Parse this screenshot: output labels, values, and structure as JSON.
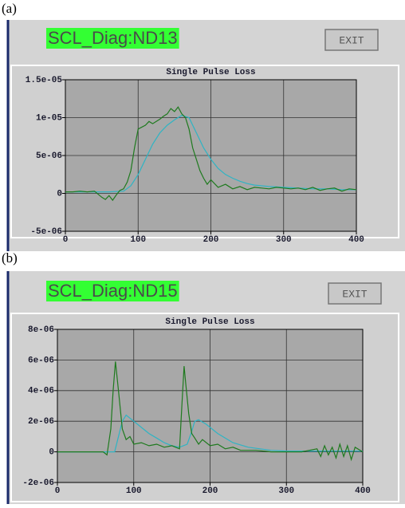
{
  "chart_data": [
    {
      "type": "line",
      "panel_label": "(a)",
      "header": "SCL_Diag:ND13",
      "button": "EXIT",
      "title": "Single Pulse Loss",
      "xlim": [
        0,
        400
      ],
      "xticks": [
        0,
        100,
        200,
        300,
        400
      ],
      "ylim": [
        -5e-06,
        1.5e-05
      ],
      "yticks": [
        {
          "value": -5e-06,
          "label": "-5e-06"
        },
        0,
        {
          "value": 5e-06,
          "label": "5e-06"
        },
        {
          "value": 1e-05,
          "label": "1e-05"
        },
        {
          "value": 1.5e-05,
          "label": "1.5e-05"
        }
      ],
      "grid": true,
      "series": [
        {
          "color": "#1e7a1e",
          "x": [
            0,
            10,
            20,
            30,
            40,
            50,
            55,
            60,
            65,
            70,
            75,
            80,
            85,
            90,
            95,
            100,
            110,
            115,
            120,
            130,
            135,
            140,
            145,
            150,
            155,
            160,
            165,
            170,
            175,
            180,
            185,
            190,
            195,
            200,
            210,
            220,
            230,
            240,
            250,
            260,
            270,
            280,
            290,
            300,
            310,
            320,
            330,
            340,
            350,
            360,
            370,
            380,
            390,
            400
          ],
          "values": [
            2e-07,
            2e-07,
            3e-07,
            2e-07,
            3e-07,
            -5e-07,
            -8e-07,
            -3e-07,
            -9e-07,
            -2e-07,
            4e-07,
            6e-07,
            1.5e-06,
            3e-06,
            6e-06,
            8.5e-06,
            9e-06,
            9.5e-06,
            9.2e-06,
            9.8e-06,
            1.02e-05,
            1.05e-05,
            1.12e-05,
            1.08e-05,
            1.14e-05,
            1.05e-05,
            1e-05,
            8.5e-06,
            6e-06,
            4.5e-06,
            3e-06,
            2e-06,
            1.2e-06,
            1.8e-06,
            8e-07,
            1.2e-06,
            6e-07,
            9e-07,
            5e-07,
            8e-07,
            7e-07,
            6e-07,
            8e-07,
            7e-07,
            6e-07,
            7e-07,
            5e-07,
            8e-07,
            4e-07,
            6e-07,
            7e-07,
            3e-07,
            6e-07,
            5e-07
          ]
        },
        {
          "color": "#2eb4c4",
          "x": [
            0,
            20,
            40,
            60,
            80,
            90,
            100,
            110,
            120,
            130,
            140,
            150,
            160,
            170,
            180,
            190,
            200,
            210,
            220,
            230,
            240,
            250,
            260,
            270,
            280,
            300,
            320,
            340,
            360,
            380,
            400
          ],
          "values": [
            2e-07,
            2e-07,
            2e-07,
            2e-07,
            3e-07,
            1e-06,
            2.5e-06,
            4.5e-06,
            6.5e-06,
            8e-06,
            9e-06,
            9.7e-06,
            1.03e-05,
            1e-05,
            8e-06,
            6e-06,
            4.5e-06,
            3.3e-06,
            2.5e-06,
            2e-06,
            1.6e-06,
            1.3e-06,
            1.1e-06,
            1e-06,
            9e-07,
            8e-07,
            7e-07,
            6e-07,
            6e-07,
            5e-07,
            5e-07
          ]
        }
      ]
    },
    {
      "type": "line",
      "panel_label": "(b)",
      "header": "SCL_Diag:ND15",
      "button": "EXIT",
      "title": "Single Pulse Loss",
      "xlim": [
        0,
        400
      ],
      "xticks": [
        0,
        100,
        200,
        300,
        400
      ],
      "ylim": [
        -2e-06,
        8e-06
      ],
      "yticks": [
        {
          "value": -2e-06,
          "label": "-2e-06"
        },
        0,
        {
          "value": 2e-06,
          "label": "2e-06"
        },
        {
          "value": 4e-06,
          "label": "4e-06"
        },
        {
          "value": 6e-06,
          "label": "6e-06"
        },
        {
          "value": 8e-06,
          "label": "8e-06"
        }
      ],
      "grid": true,
      "series": [
        {
          "color": "#1e7a1e",
          "x": [
            0,
            20,
            40,
            60,
            65,
            70,
            73,
            76,
            80,
            85,
            90,
            95,
            100,
            110,
            120,
            130,
            140,
            150,
            160,
            163,
            166,
            168,
            172,
            176,
            180,
            185,
            190,
            200,
            210,
            220,
            230,
            240,
            260,
            280,
            300,
            320,
            340,
            345,
            350,
            355,
            360,
            365,
            370,
            375,
            380,
            385,
            390,
            400
          ],
          "values": [
            0,
            0,
            0,
            0,
            -2e-07,
            1.5e-06,
            4e-06,
            5.9e-06,
            4e-06,
            1.5e-06,
            8e-07,
            1e-06,
            5e-07,
            6e-07,
            4e-07,
            5e-07,
            3e-07,
            4e-07,
            2e-07,
            3e-06,
            5.6e-06,
            4.5e-06,
            2.5e-06,
            1.2e-06,
            9e-07,
            5e-07,
            8e-07,
            4e-07,
            5e-07,
            2e-07,
            3e-07,
            1e-07,
            1e-07,
            0,
            0,
            0,
            2e-07,
            -3e-07,
            4e-07,
            -2e-07,
            3e-07,
            -4e-07,
            5e-07,
            -3e-07,
            4e-07,
            -5e-07,
            3e-07,
            0
          ]
        },
        {
          "color": "#2eb4c4",
          "x": [
            0,
            40,
            75,
            80,
            85,
            90,
            100,
            110,
            120,
            130,
            140,
            150,
            160,
            170,
            175,
            180,
            185,
            195,
            210,
            230,
            250,
            280,
            300,
            350,
            400
          ],
          "values": [
            0,
            0,
            0,
            1e-06,
            2e-06,
            2.4e-06,
            2e-06,
            1.6e-06,
            1.2e-06,
            9e-07,
            6e-07,
            4e-07,
            3e-07,
            5e-07,
            1.2e-06,
            2e-06,
            2.1e-06,
            1.8e-06,
            1.2e-06,
            6e-07,
            3e-07,
            1e-07,
            5e-08,
            5e-08,
            5e-08
          ]
        }
      ]
    }
  ]
}
